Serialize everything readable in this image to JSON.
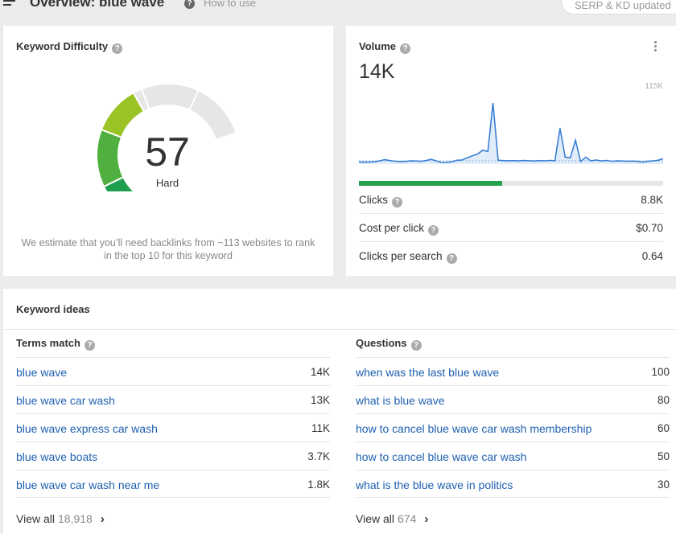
{
  "header": {
    "title": "Overview: blue wave",
    "help_icon": "?",
    "how_to_use": "How to use",
    "serp_status": "SERP & KD updated"
  },
  "keyword_difficulty": {
    "title": "Keyword Difficulty",
    "value": "57",
    "score": 57,
    "label": "Hard",
    "note": "We estimate that you’ll need backlinks from ~113 websites to rank in the top 10 for this keyword",
    "colors": {
      "dark_green": "#1e9e4e",
      "green": "#4fb03f",
      "lime": "#9ac426",
      "yellow": "#e2c000",
      "track": "#e6e6e6"
    }
  },
  "volume": {
    "title": "Volume",
    "value": "14K",
    "chart_max_label": "115K",
    "clicks_share": 0.47,
    "metrics": [
      {
        "label": "Clicks",
        "value": "8.8K",
        "help": true
      },
      {
        "label": "Cost per click",
        "value": "$0.70",
        "help": true
      },
      {
        "label": "Clicks per search",
        "value": "0.64",
        "help": true
      }
    ],
    "colors": {
      "line": "#3a7fd5",
      "fill": "#cfe1f7",
      "clicks": "#25a24e"
    }
  },
  "chart_data": {
    "type": "area",
    "title": "",
    "xlabel": "",
    "ylabel": "",
    "ylim": [
      0,
      115000
    ],
    "series": [
      {
        "values": [
          3500,
          3000,
          3200,
          3600,
          5000,
          7000,
          5500,
          4500,
          4000,
          4200,
          5000,
          4800,
          4300,
          5500,
          7500,
          5000,
          2500,
          2800,
          3500,
          6000,
          6500,
          10000,
          13000,
          16000,
          22000,
          20000,
          97000,
          6000,
          5500,
          5200,
          5400,
          5000,
          5600,
          5200,
          4800,
          5500,
          5000,
          5800,
          5200,
          57000,
          11000,
          10000,
          38000,
          4000,
          11000,
          5000,
          6500,
          5000,
          5800,
          4500,
          5000,
          4800,
          4500,
          4700,
          4300,
          3000,
          4400,
          5000,
          6000,
          8500
        ]
      }
    ]
  },
  "keyword_ideas": {
    "title": "Keyword ideas",
    "help_icon": "?",
    "terms_match": {
      "title": "Terms match",
      "rows": [
        {
          "keyword": "blue wave",
          "volume": "14K"
        },
        {
          "keyword": "blue wave car wash",
          "volume": "13K"
        },
        {
          "keyword": "blue wave express car wash",
          "volume": "11K"
        },
        {
          "keyword": "blue wave boats",
          "volume": "3.7K"
        },
        {
          "keyword": "blue wave car wash near me",
          "volume": "1.8K"
        }
      ],
      "view_all": "View all",
      "view_all_count": "18,918",
      "chevron": "›"
    },
    "questions": {
      "title": "Questions",
      "rows": [
        {
          "keyword": "when was the last blue wave",
          "volume": "100"
        },
        {
          "keyword": "what is blue wave",
          "volume": "80"
        },
        {
          "keyword": "how to cancel blue wave car wash membership",
          "volume": "60"
        },
        {
          "keyword": "how to cancel blue wave car wash",
          "volume": "50"
        },
        {
          "keyword": "what is the blue wave in politics",
          "volume": "30"
        }
      ],
      "view_all": "View all",
      "view_all_count": "674",
      "chevron": "›"
    }
  }
}
